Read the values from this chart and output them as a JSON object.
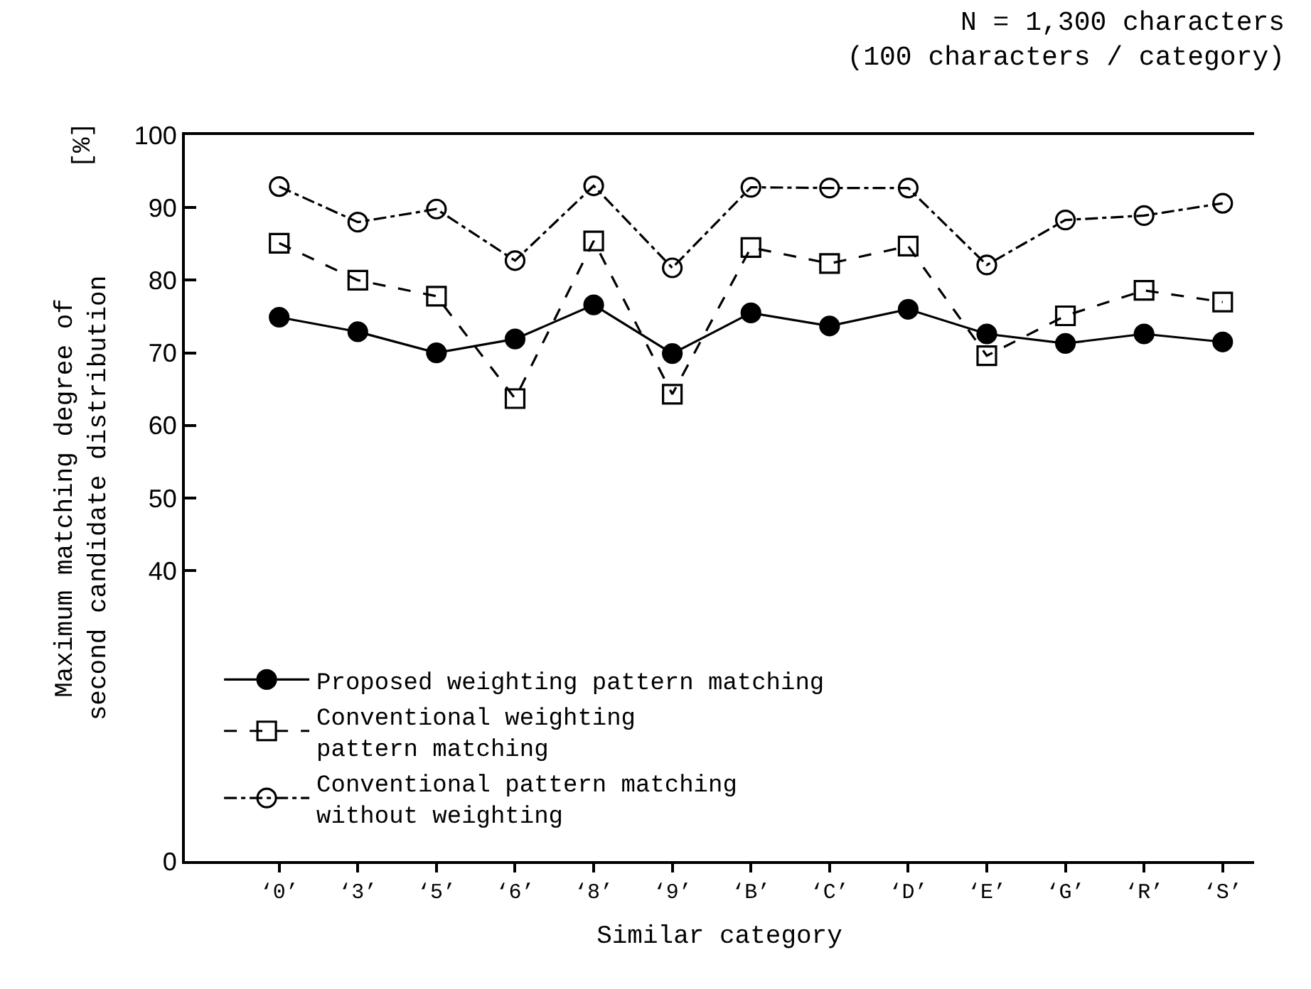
{
  "chart_data": {
    "type": "line",
    "title": "N = 1,300 characters\n(100 characters / category)",
    "xlabel": "Similar category",
    "ylabel": "Maximum matching degree of\nsecond candidate distribution",
    "annotations": [
      "[%]"
    ],
    "categories": [
      "‘0’",
      "‘3’",
      "‘5’",
      "‘6’",
      "‘8’",
      "‘9’",
      "‘B’",
      "‘C’",
      "‘D’",
      "‘E’",
      "‘G’",
      "‘R’",
      "‘S’"
    ],
    "series": [
      {
        "name": "Proposed weighting pattern matching",
        "color": "#000000",
        "marker": "circle",
        "line_style": "solid",
        "values": [
          74.9,
          72.9,
          70.0,
          71.9,
          76.6,
          69.9,
          75.5,
          73.7,
          76.0,
          72.6,
          71.3,
          72.6,
          71.5
        ]
      },
      {
        "name": "Conventional weighting\npattern matching",
        "color": "#000000",
        "marker": "square-open",
        "line_style": "dashed",
        "values": [
          85.1,
          80.0,
          77.8,
          63.7,
          85.4,
          64.3,
          84.5,
          82.3,
          84.7,
          69.6,
          75.1,
          78.6,
          77.0
        ]
      },
      {
        "name": "Conventional pattern matching\nwithout weighting",
        "color": "#000000",
        "marker": "circle-open",
        "line_style": "dashdot",
        "values": [
          92.9,
          88.0,
          89.8,
          82.7,
          93.0,
          81.7,
          92.8,
          92.7,
          92.7,
          82.1,
          88.3,
          88.9,
          90.6
        ]
      }
    ],
    "ylim": [
      0,
      100
    ],
    "yticks": [
      0,
      40,
      50,
      60,
      70,
      80,
      90,
      100
    ],
    "grid": false,
    "legend": "bottom left"
  }
}
